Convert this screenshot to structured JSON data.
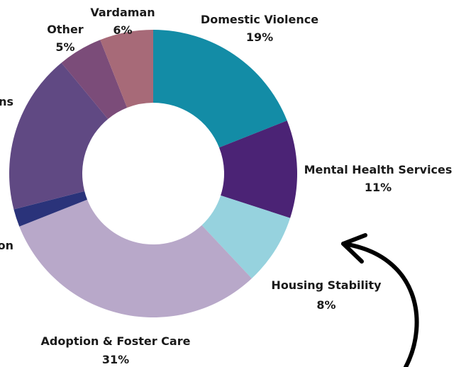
{
  "chart_data": {
    "type": "donut",
    "categories": [
      "Domestic Violence",
      "Mental Health Services",
      "Housing Stability",
      "Adoption & Foster Care",
      "Education",
      "Seniors & Veterans",
      "Other",
      "Vardaman"
    ],
    "values": [
      19,
      11,
      8,
      31,
      2,
      18,
      5,
      6
    ],
    "value_labels": [
      "19%",
      "11%",
      "8%",
      "31%",
      "",
      "",
      "5%",
      "6%"
    ],
    "visible_category_text": [
      "Domestic Violence",
      "Mental Health Services",
      "Housing Stability",
      "Adoption & Foster Care",
      "on",
      "ns",
      "Other",
      "Vardaman"
    ],
    "colors": [
      "#138ca6",
      "#4b2375",
      "#96d2de",
      "#b8a8c9",
      "#2a337a",
      "#604983",
      "#7b4c79",
      "#a76a78"
    ],
    "legend": "none (labels placed next to slices)"
  },
  "decoration": {
    "arrow": "curved-arrow-icon",
    "arrow_color": "#000000"
  }
}
